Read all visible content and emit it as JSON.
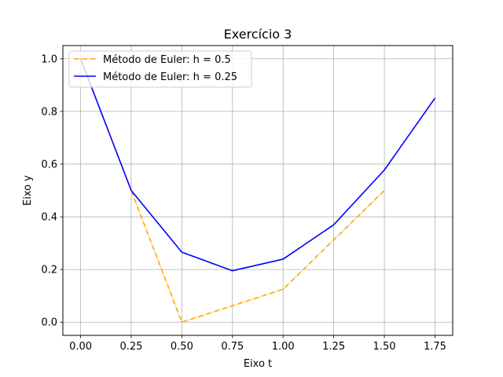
{
  "chart_data": {
    "type": "line",
    "title": "Exercício 3",
    "xlabel": "Eixo t",
    "ylabel": "Eixo y",
    "xlim": [
      -0.0875,
      1.8375
    ],
    "ylim": [
      -0.05,
      1.05
    ],
    "xticks": [
      0.0,
      0.25,
      0.5,
      0.75,
      1.0,
      1.25,
      1.5,
      1.75
    ],
    "xtick_labels": [
      "0.00",
      "0.25",
      "0.50",
      "0.75",
      "1.00",
      "1.25",
      "1.50",
      "1.75"
    ],
    "yticks": [
      0.0,
      0.2,
      0.4,
      0.6,
      0.8,
      1.0
    ],
    "ytick_labels": [
      "0.0",
      "0.2",
      "0.4",
      "0.6",
      "0.8",
      "1.0"
    ],
    "grid": true,
    "legend_position": "top-left",
    "series": [
      {
        "name": "Método de Euler: h = 0.5",
        "color": "#ffa500",
        "linestyle": "dashdot",
        "x": [
          0.0,
          0.25,
          0.5,
          0.75,
          1.0,
          1.25,
          1.5
        ],
        "y": [
          1.0,
          0.5,
          0.0,
          0.0625,
          0.125,
          0.3125,
          0.5
        ]
      },
      {
        "name": "Método de Euler: h = 0.25",
        "color": "#0000ff",
        "linestyle": "solid",
        "x": [
          0.0,
          0.25,
          0.5,
          0.75,
          1.0,
          1.25,
          1.5,
          1.75
        ],
        "y": [
          1.0,
          0.5,
          0.2656,
          0.1953,
          0.2393,
          0.3698,
          0.5775,
          0.8505
        ]
      }
    ]
  }
}
